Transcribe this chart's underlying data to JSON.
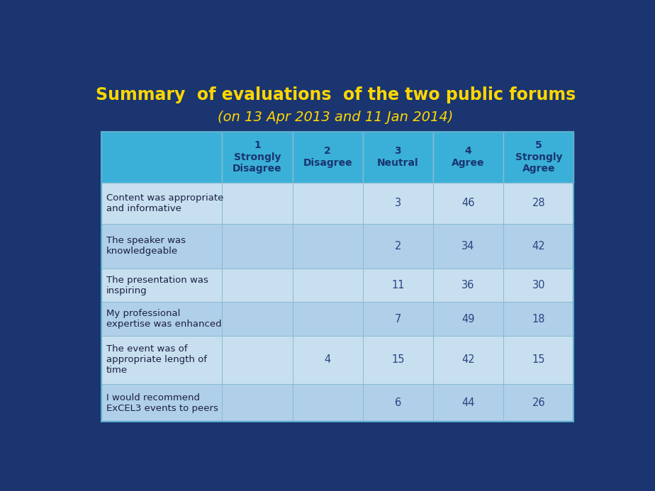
{
  "title_line1": "Summary  of evaluations  of the two public forums",
  "title_line2": "(on 13 Apr 2013 and 11 Jan 2014)",
  "title_color": "#FFD700",
  "background_color": "#1a3570",
  "header_bg": "#3ab0d8",
  "row_bg_light": "#c8dff0",
  "row_bg_dark": "#b0cfe8",
  "col_headers": [
    "1\nStrongly\nDisagree",
    "2\nDisagree",
    "3\nNeutral",
    "4\nAgree",
    "5\nStrongly\nAgree"
  ],
  "row_labels": [
    "Content was appropriate\nand informative",
    "The speaker was\nknowledgeable",
    "The presentation was\ninspiring",
    "My professional\nexpertise was enhanced",
    "The event was of\nappropriate length of\ntime",
    "I would recommend\nExCEL3 events to peers"
  ],
  "cell_data": [
    [
      "",
      "",
      "3",
      "46",
      "28"
    ],
    [
      "",
      "",
      "2",
      "34",
      "42"
    ],
    [
      "",
      "",
      "11",
      "36",
      "30"
    ],
    [
      "",
      "",
      "7",
      "49",
      "18"
    ],
    [
      "",
      "4",
      "15",
      "42",
      "15"
    ],
    [
      "",
      "",
      "6",
      "44",
      "26"
    ]
  ],
  "header_text_color": "#1a3570",
  "cell_text_color": "#2a4580",
  "row_label_text_color": "#1a2040",
  "border_color": "#88bbd0",
  "table_border_color": "#5aadcc",
  "title_fontsize": 17,
  "subtitle_fontsize": 14,
  "header_fontsize": 10,
  "cell_fontsize": 10.5,
  "label_fontsize": 9.5
}
